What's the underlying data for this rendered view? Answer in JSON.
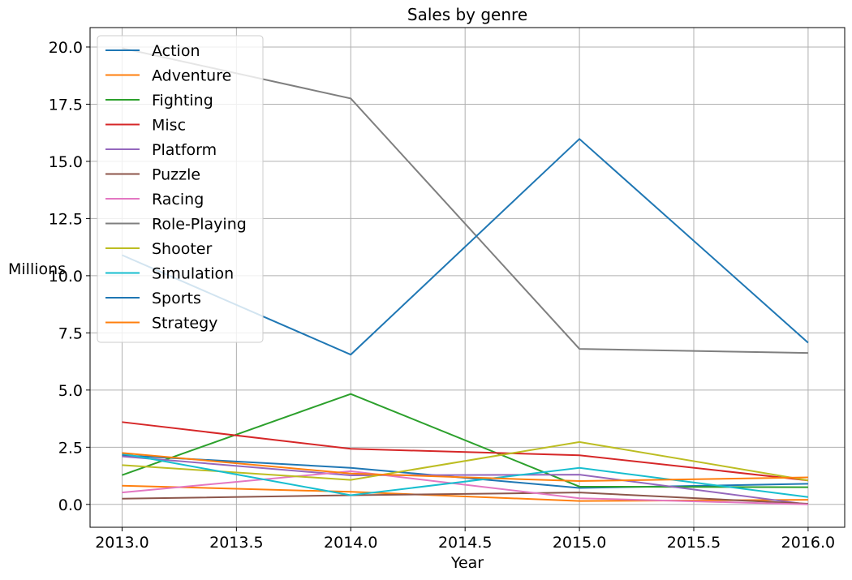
{
  "chart_data": {
    "type": "line",
    "title": "Sales by genre",
    "xlabel": "Year",
    "ylabel": "Millions",
    "x": [
      2013,
      2014,
      2015,
      2016
    ],
    "xlim": [
      2012.86,
      2016.16
    ],
    "ylim": [
      -1.0,
      20.85
    ],
    "xticks": [
      2013.0,
      2013.5,
      2014.0,
      2014.5,
      2015.0,
      2015.5,
      2016.0
    ],
    "xtick_labels": [
      "2013.0",
      "2013.5",
      "2014.0",
      "2014.5",
      "2015.0",
      "2015.5",
      "2016.0"
    ],
    "yticks": [
      0.0,
      2.5,
      5.0,
      7.5,
      10.0,
      12.5,
      15.0,
      17.5,
      20.0
    ],
    "ytick_labels": [
      "0.0",
      "2.5",
      "5.0",
      "7.5",
      "10.0",
      "12.5",
      "15.0",
      "17.5",
      "20.0"
    ],
    "grid": true,
    "legend_position": "top-left",
    "series": [
      {
        "name": "Action",
        "color": "#1f77b4",
        "values": [
          2.15,
          1.6,
          0.72,
          0.9
        ]
      },
      {
        "name": "Adventure",
        "color": "#ff7f0e",
        "values": [
          0.82,
          0.55,
          0.15,
          0.2
        ]
      },
      {
        "name": "Fighting",
        "color": "#2ca02c",
        "values": [
          1.28,
          4.83,
          0.78,
          0.75
        ]
      },
      {
        "name": "Misc",
        "color": "#d62728",
        "values": [
          3.6,
          2.43,
          2.15,
          1.05
        ]
      },
      {
        "name": "Platform",
        "color": "#9467bd",
        "values": [
          2.1,
          1.27,
          1.3,
          0.0
        ]
      },
      {
        "name": "Puzzle",
        "color": "#8c564b",
        "values": [
          0.25,
          0.4,
          0.52,
          0.03
        ]
      },
      {
        "name": "Racing",
        "color": "#e377c2",
        "values": [
          0.52,
          1.45,
          0.27,
          0.0
        ]
      },
      {
        "name": "Role-Playing",
        "color": "#7f7f7f",
        "values": [
          19.95,
          17.75,
          6.8,
          6.62
        ]
      },
      {
        "name": "Shooter",
        "color": "#bcbd22",
        "values": [
          1.72,
          1.07,
          2.73,
          1.05
        ]
      },
      {
        "name": "Simulation",
        "color": "#17becf",
        "values": [
          2.22,
          0.4,
          1.6,
          0.32
        ]
      },
      {
        "name": "Sports",
        "color": "#1f77b4",
        "values": [
          10.9,
          6.55,
          15.98,
          7.07
        ]
      },
      {
        "name": "Strategy",
        "color": "#ff7f0e",
        "values": [
          2.25,
          1.35,
          1.02,
          1.18
        ]
      }
    ]
  }
}
